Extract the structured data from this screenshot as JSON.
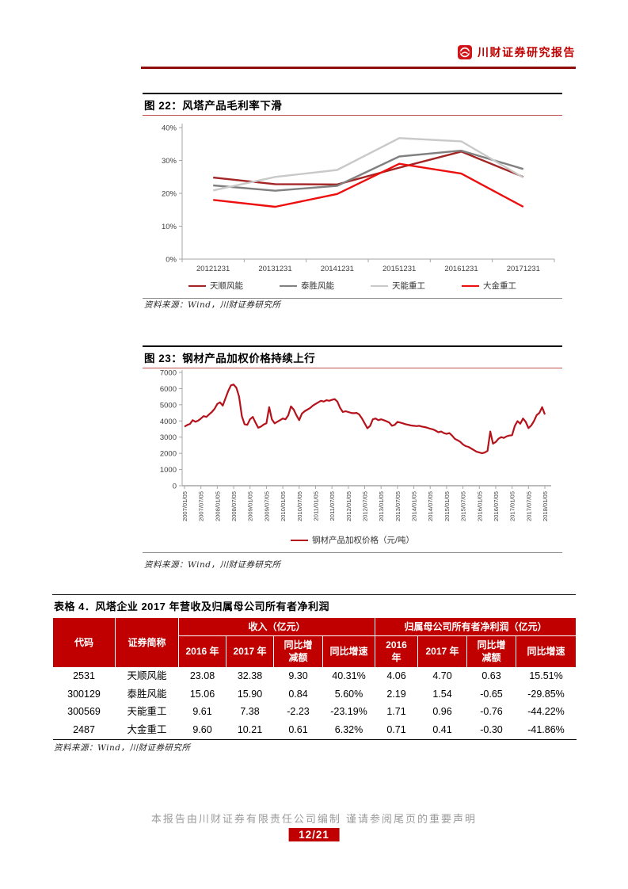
{
  "header": {
    "brand": "川财证券研究报告"
  },
  "figure22": {
    "title": "图 22：风塔产品毛利率下滑",
    "source": "资料来源：Wind，川财证券研究所"
  },
  "figure23": {
    "title": "图 23：钢材产品加权价格持续上行",
    "source": "资料来源：Wind，川财证券研究所"
  },
  "table4": {
    "caption": "表格 4．风塔企业 2017 年营收及归属母公司所有者净利润",
    "col_code": "代码",
    "col_name": "证券简称",
    "group_revenue": "收入（亿元）",
    "group_profit": "归属母公司所有者净利润（亿元）",
    "sub_headers": [
      "2016 年",
      "2017 年",
      "同比增\n减额",
      "同比增速",
      "2016\n年",
      "2017 年",
      "同比增\n减额",
      "同比增速"
    ],
    "rows": [
      [
        "2531",
        "天顺风能",
        "23.08",
        "32.38",
        "9.30",
        "40.31%",
        "4.06",
        "4.70",
        "0.63",
        "15.51%"
      ],
      [
        "300129",
        "泰胜风能",
        "15.06",
        "15.90",
        "0.84",
        "5.60%",
        "2.19",
        "1.54",
        "-0.65",
        "-29.85%"
      ],
      [
        "300569",
        "天能重工",
        "9.61",
        "7.38",
        "-2.23",
        "-23.19%",
        "1.71",
        "0.96",
        "-0.76",
        "-44.22%"
      ],
      [
        "2487",
        "大金重工",
        "9.60",
        "10.21",
        "0.61",
        "6.32%",
        "0.71",
        "0.41",
        "-0.30",
        "-41.86%"
      ]
    ],
    "source": "资料来源：Wind，川财证券研究所"
  },
  "footer": {
    "disclaimer": "本报告由川财证券有限责任公司编制 谨请参阅尾页的重要声明",
    "page": "12/21"
  },
  "colors": {
    "theme_red": "#c00000",
    "header_rule": "#8f0d0d",
    "figure_title_rule": "#c0504d",
    "axis": "#a6a6a6",
    "tick_text": "#404040"
  },
  "chart_data": [
    {
      "type": "line",
      "title": "风塔产品毛利率下滑",
      "categories": [
        "20121231",
        "20131231",
        "20141231",
        "20151231",
        "20161231",
        "20171231"
      ],
      "series": [
        {
          "name": "天顺风能",
          "color": "#a32424",
          "values": [
            24.8,
            22.8,
            22.7,
            27.8,
            32.7,
            25.0
          ]
        },
        {
          "name": "泰胜风能",
          "color": "#808080",
          "values": [
            22.4,
            20.8,
            22.3,
            31.2,
            33.0,
            27.4
          ]
        },
        {
          "name": "天能重工",
          "color": "#c9c9c9",
          "values": [
            20.9,
            25.0,
            27.1,
            36.8,
            35.8,
            24.8
          ]
        },
        {
          "name": "大金重工",
          "color": "#ed0e0e",
          "values": [
            18.0,
            15.9,
            19.8,
            29.0,
            26.0,
            15.9
          ]
        }
      ],
      "ylim": [
        0,
        40
      ],
      "y_tick_step": 10,
      "y_tick_suffix": "%",
      "grid": false,
      "legend_position": "bottom"
    },
    {
      "type": "line",
      "title": "钢材产品加权价格持续上行",
      "series_name": "钢材产品加权价格（元/吨）",
      "color": "#b5121b",
      "x_note": "monthly samples 2007/01 - 2018/01, labels every 6 months",
      "x_labels": [
        "2007/01/05",
        "2007/07/05",
        "2008/01/05",
        "2008/07/05",
        "2009/01/05",
        "2009/07/05",
        "2010/01/05",
        "2010/07/05",
        "2011/01/05",
        "2011/07/05",
        "2012/01/05",
        "2012/07/05",
        "2013/01/05",
        "2013/07/05",
        "2014/01/05",
        "2014/07/05",
        "2015/01/05",
        "2015/07/05",
        "2016/01/05",
        "2016/07/05",
        "2017/01/05",
        "2017/07/05",
        "2018/01/05"
      ],
      "x_label_interval_months": 6,
      "values": [
        3650,
        3750,
        3820,
        4050,
        3950,
        4020,
        4150,
        4300,
        4250,
        4400,
        4550,
        4750,
        5050,
        5150,
        4950,
        5400,
        5850,
        6200,
        6250,
        6050,
        5500,
        4300,
        3800,
        3760,
        4100,
        4250,
        3900,
        3580,
        3650,
        3780,
        3850,
        4850,
        4100,
        3850,
        3950,
        4050,
        4150,
        4100,
        4350,
        4900,
        4700,
        4350,
        4050,
        4450,
        4600,
        4700,
        4800,
        4950,
        5050,
        5150,
        5250,
        5200,
        5280,
        5250,
        5300,
        5350,
        5200,
        4800,
        4550,
        4600,
        4550,
        4500,
        4480,
        4500,
        4400,
        4150,
        3850,
        3550,
        3700,
        4100,
        4150,
        4050,
        4100,
        4050,
        3980,
        3900,
        3700,
        3760,
        3940,
        3900,
        3850,
        3800,
        3760,
        3720,
        3700,
        3680,
        3700,
        3650,
        3620,
        3580,
        3520,
        3480,
        3400,
        3300,
        3350,
        3250,
        3200,
        3250,
        3100,
        2900,
        2810,
        2710,
        2550,
        2450,
        2400,
        2300,
        2200,
        2100,
        2050,
        2000,
        2050,
        2150,
        3350,
        2600,
        2700,
        2900,
        3000,
        2950,
        3050,
        3100,
        3120,
        3700,
        3990,
        3830,
        4150,
        3940,
        3560,
        3720,
        3990,
        4360,
        4500,
        4850,
        4400
      ],
      "ylim": [
        0,
        7000
      ],
      "y_tick_step": 1000,
      "y_tick_suffix": "",
      "grid": false,
      "legend_position": "bottom"
    }
  ]
}
